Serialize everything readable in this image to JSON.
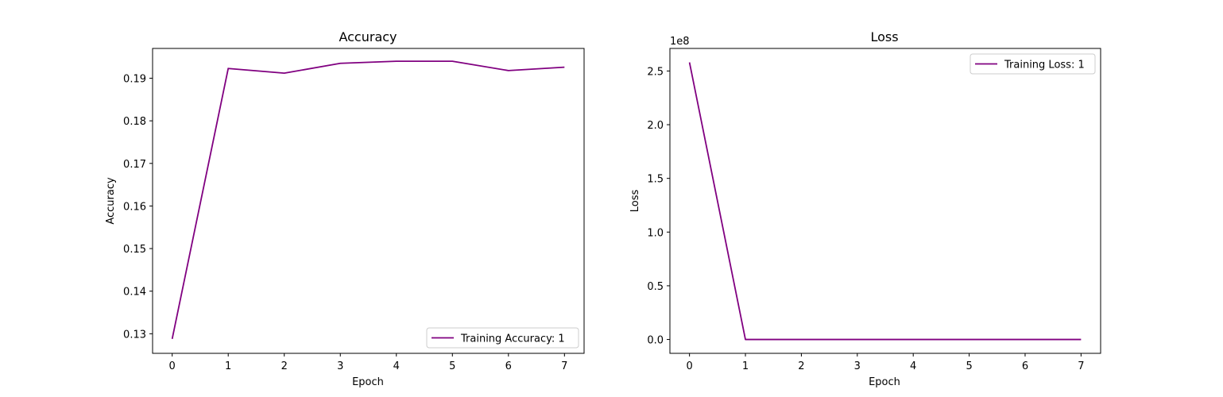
{
  "colors": {
    "series": "#800080",
    "axes": "#000000",
    "background": "#ffffff"
  },
  "chart_data": [
    {
      "type": "line",
      "title": "Accuracy",
      "xlabel": "Epoch",
      "ylabel": "Accuracy",
      "x": [
        0,
        1,
        2,
        3,
        4,
        5,
        6,
        7
      ],
      "xlim": [
        -0.35,
        7.35
      ],
      "ylim": [
        0.1254,
        0.197
      ],
      "xticks": [
        0,
        1,
        2,
        3,
        4,
        5,
        6,
        7
      ],
      "yticks": [
        0.13,
        0.14,
        0.15,
        0.16,
        0.17,
        0.18,
        0.19
      ],
      "ytick_labels": [
        "0.13",
        "0.14",
        "0.15",
        "0.16",
        "0.17",
        "0.18",
        "0.19"
      ],
      "offset_text": "",
      "grid": false,
      "legend_position": "lower-right",
      "series": [
        {
          "name": "Training Accuracy: 1",
          "values": [
            0.1288,
            0.1923,
            0.1912,
            0.1935,
            0.194,
            0.194,
            0.1918,
            0.1926
          ]
        }
      ]
    },
    {
      "type": "line",
      "title": "Loss",
      "xlabel": "Epoch",
      "ylabel": "Loss",
      "x": [
        0,
        1,
        2,
        3,
        4,
        5,
        6,
        7
      ],
      "xlim": [
        -0.35,
        7.35
      ],
      "ylim": [
        -12900000,
        271000000
      ],
      "xticks": [
        0,
        1,
        2,
        3,
        4,
        5,
        6,
        7
      ],
      "yticks": [
        0,
        50000000,
        100000000,
        150000000,
        200000000,
        250000000
      ],
      "ytick_labels": [
        "0.0",
        "0.5",
        "1.0",
        "1.5",
        "2.0",
        "2.5"
      ],
      "offset_text": "1e8",
      "grid": false,
      "legend_position": "upper-right",
      "series": [
        {
          "name": "Training Loss: 1",
          "values": [
            258000000,
            0,
            0,
            0,
            0,
            0,
            0,
            0
          ]
        }
      ]
    }
  ]
}
